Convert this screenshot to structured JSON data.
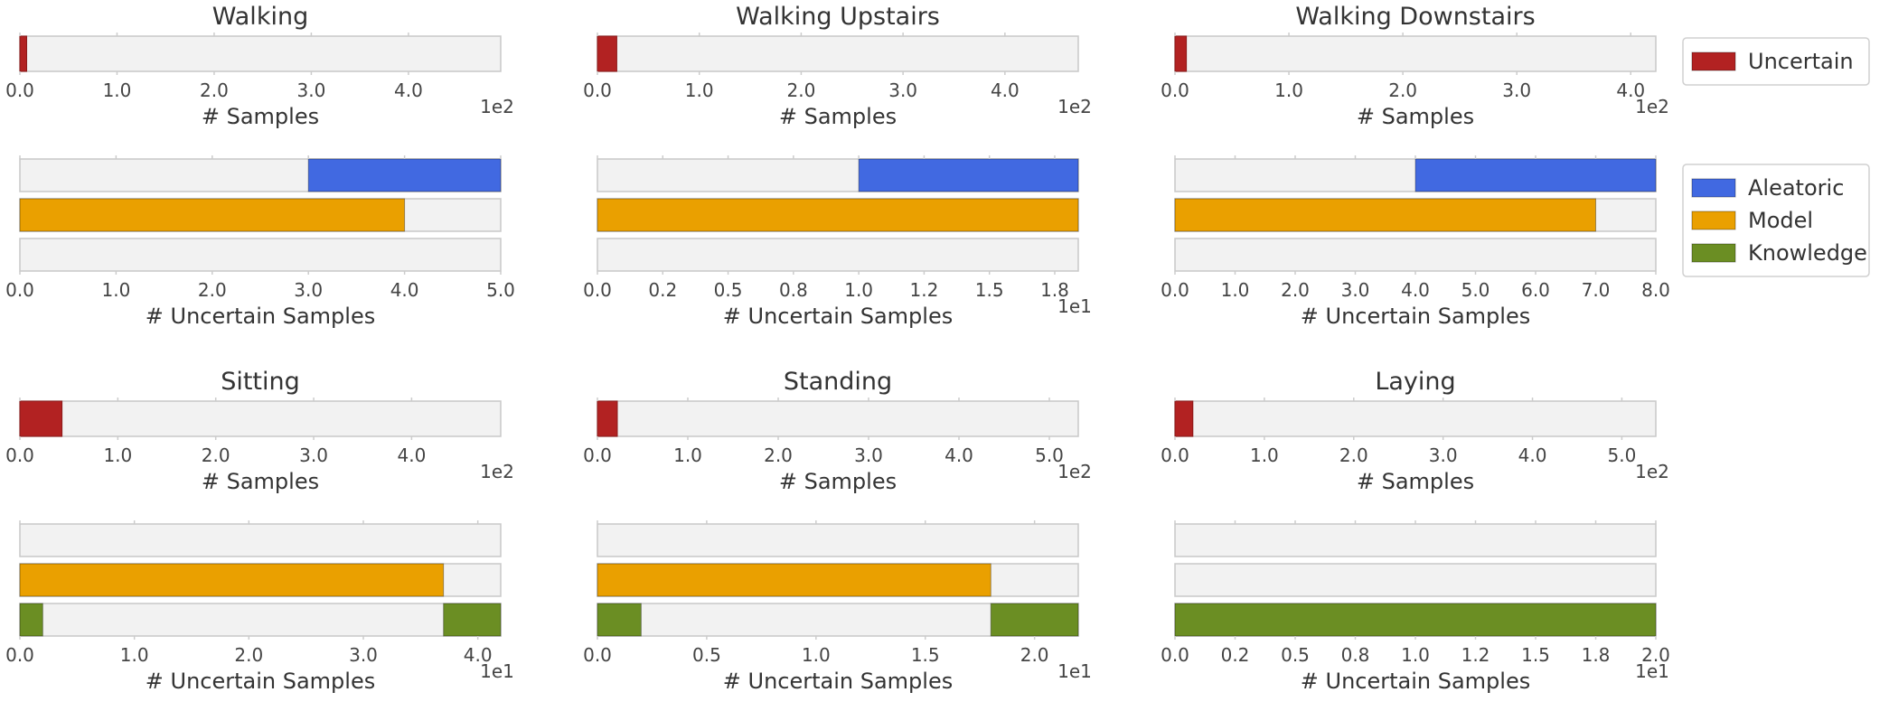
{
  "chart_data": [
    {
      "type": "bar",
      "orientation": "horizontal",
      "title": "Walking",
      "samples": {
        "xlabel": "# Samples",
        "xlim": [
          0,
          4.95
        ],
        "ticks": [
          0,
          1,
          2,
          3,
          4
        ],
        "tick_labels": [
          "0.0",
          "1.0",
          "2.0",
          "3.0",
          "4.0"
        ],
        "scale_label": "1e2",
        "uncertain": 0.07
      },
      "uncertain": {
        "xlabel": "# Uncertain Samples",
        "xlim": [
          0,
          5
        ],
        "ticks": [
          0,
          1,
          2,
          3,
          4,
          5
        ],
        "tick_labels": [
          "0.0",
          "1.0",
          "2.0",
          "3.0",
          "4.0",
          "5.0"
        ],
        "scale_label": "",
        "aleatoric": [
          [
            3,
            5
          ]
        ],
        "model": [
          [
            0,
            4
          ]
        ],
        "knowledge": []
      }
    },
    {
      "type": "bar",
      "orientation": "horizontal",
      "title": "Walking Upstairs",
      "samples": {
        "xlabel": "# Samples",
        "xlim": [
          0,
          4.72
        ],
        "ticks": [
          0,
          1,
          2,
          3,
          4
        ],
        "tick_labels": [
          "0.0",
          "1.0",
          "2.0",
          "3.0",
          "4.0"
        ],
        "scale_label": "1e2",
        "uncertain": 0.19
      },
      "uncertain": {
        "xlabel": "# Uncertain Samples",
        "xlim": [
          0,
          1.84
        ],
        "ticks": [
          0,
          0.25,
          0.5,
          0.75,
          1.0,
          1.25,
          1.5,
          1.75
        ],
        "tick_labels": [
          "0.0",
          "0.2",
          "0.5",
          "0.8",
          "1.0",
          "1.2",
          "1.5",
          "1.8"
        ],
        "scale_label": "1e1",
        "aleatoric": [
          [
            1.0,
            1.84
          ]
        ],
        "model": [
          [
            0,
            1.84
          ]
        ],
        "knowledge": []
      }
    },
    {
      "type": "bar",
      "orientation": "horizontal",
      "title": "Walking Downstairs",
      "samples": {
        "xlabel": "# Samples",
        "xlim": [
          0,
          4.22
        ],
        "ticks": [
          0,
          1,
          2,
          3,
          4
        ],
        "tick_labels": [
          "0.0",
          "1.0",
          "2.0",
          "3.0",
          "4.0"
        ],
        "scale_label": "1e2",
        "uncertain": 0.1
      },
      "uncertain": {
        "xlabel": "# Uncertain Samples",
        "xlim": [
          0,
          8
        ],
        "ticks": [
          0,
          1,
          2,
          3,
          4,
          5,
          6,
          7,
          8
        ],
        "tick_labels": [
          "0.0",
          "1.0",
          "2.0",
          "3.0",
          "4.0",
          "5.0",
          "6.0",
          "7.0",
          "8.0"
        ],
        "scale_label": "",
        "aleatoric": [
          [
            4,
            8
          ]
        ],
        "model": [
          [
            0,
            7
          ]
        ],
        "knowledge": []
      }
    },
    {
      "type": "bar",
      "orientation": "horizontal",
      "title": "Sitting",
      "samples": {
        "xlabel": "# Samples",
        "xlim": [
          0,
          4.91
        ],
        "ticks": [
          0,
          1,
          2,
          3,
          4
        ],
        "tick_labels": [
          "0.0",
          "1.0",
          "2.0",
          "3.0",
          "4.0"
        ],
        "scale_label": "1e2",
        "uncertain": 0.43
      },
      "uncertain": {
        "xlabel": "# Uncertain Samples",
        "xlim": [
          0,
          4.2
        ],
        "ticks": [
          0,
          1,
          2,
          3,
          4
        ],
        "tick_labels": [
          "0.0",
          "1.0",
          "2.0",
          "3.0",
          "4.0"
        ],
        "scale_label": "1e1",
        "aleatoric": [],
        "model": [
          [
            0,
            3.7
          ]
        ],
        "knowledge": [
          [
            0,
            0.2
          ],
          [
            3.7,
            4.2
          ]
        ]
      }
    },
    {
      "type": "bar",
      "orientation": "horizontal",
      "title": "Standing",
      "samples": {
        "xlabel": "# Samples",
        "xlim": [
          0,
          5.32
        ],
        "ticks": [
          0,
          1,
          2,
          3,
          4,
          5
        ],
        "tick_labels": [
          "0.0",
          "1.0",
          "2.0",
          "3.0",
          "4.0",
          "5.0"
        ],
        "scale_label": "1e2",
        "uncertain": 0.22
      },
      "uncertain": {
        "xlabel": "# Uncertain Samples",
        "xlim": [
          0,
          2.2
        ],
        "ticks": [
          0,
          0.5,
          1.0,
          1.5,
          2.0
        ],
        "tick_labels": [
          "0.0",
          "0.5",
          "1.0",
          "1.5",
          "2.0"
        ],
        "scale_label": "1e1",
        "aleatoric": [],
        "model": [
          [
            0,
            1.8
          ]
        ],
        "knowledge": [
          [
            0,
            0.2
          ],
          [
            1.8,
            2.2
          ]
        ]
      }
    },
    {
      "type": "bar",
      "orientation": "horizontal",
      "title": "Laying",
      "samples": {
        "xlabel": "# Samples",
        "xlim": [
          0,
          5.38
        ],
        "ticks": [
          0,
          1,
          2,
          3,
          4,
          5
        ],
        "tick_labels": [
          "0.0",
          "1.0",
          "2.0",
          "3.0",
          "4.0",
          "5.0"
        ],
        "scale_label": "1e2",
        "uncertain": 0.2
      },
      "uncertain": {
        "xlabel": "# Uncertain Samples",
        "xlim": [
          0,
          2.0
        ],
        "ticks": [
          0,
          0.25,
          0.5,
          0.75,
          1.0,
          1.25,
          1.5,
          1.75,
          2.0
        ],
        "tick_labels": [
          "0.0",
          "0.2",
          "0.5",
          "0.8",
          "1.0",
          "1.2",
          "1.5",
          "1.8",
          "2.0"
        ],
        "scale_label": "1e1",
        "aleatoric": [],
        "model": [],
        "knowledge": [
          [
            0,
            2.0
          ]
        ]
      }
    }
  ],
  "legend_top": [
    {
      "label": "Uncertain",
      "color": "#b22222"
    }
  ],
  "legend_bottom": [
    {
      "label": "Aleatoric",
      "color": "#4169e1"
    },
    {
      "label": "Model",
      "color": "#eaa000"
    },
    {
      "label": "Knowledge",
      "color": "#6b8e23"
    }
  ],
  "colors": {
    "track": "#f2f2f2",
    "track_edge": "#c8c8c8",
    "uncertain": "#b22222",
    "aleatoric": "#4169e1",
    "model": "#eaa000",
    "knowledge": "#6b8e23",
    "tick": "#cccccc"
  }
}
